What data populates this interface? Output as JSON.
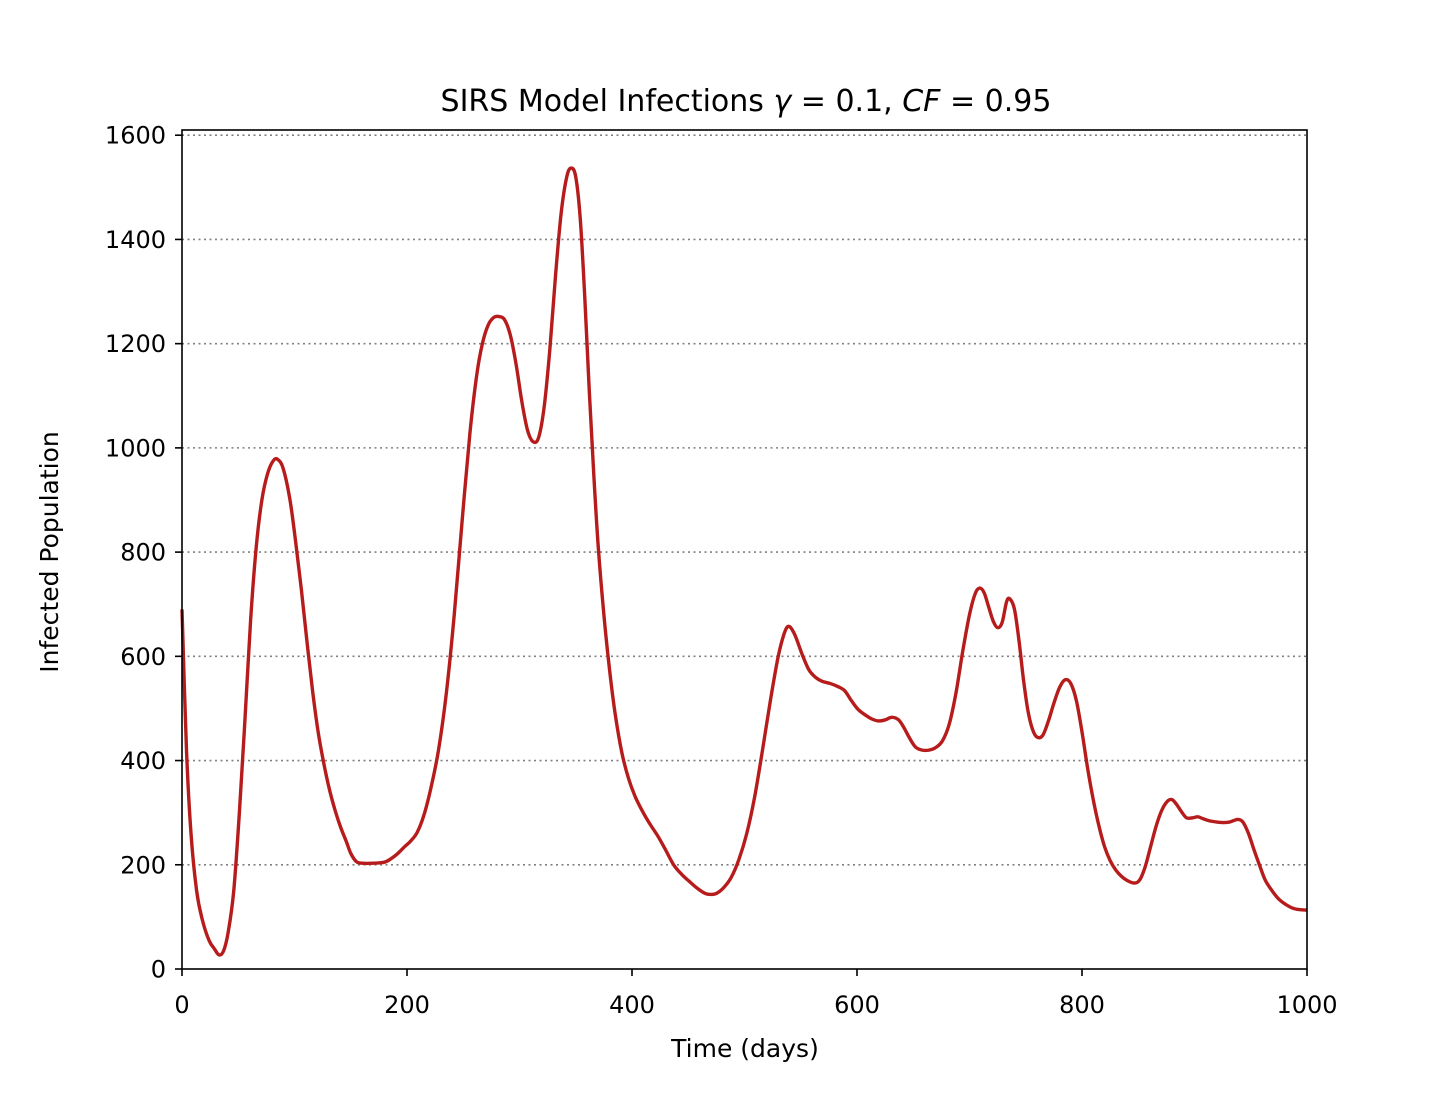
{
  "chart_data": {
    "type": "line",
    "title": {
      "prefix": "SIRS Model Infections ",
      "gamma_symbol": "γ",
      "gamma_rest": " = 0.1, ",
      "cf_symbol": "CF",
      "cf_rest": " = 0.95"
    },
    "xlabel": "Time (days)",
    "ylabel": "Infected Population",
    "xlim": [
      0,
      1000
    ],
    "ylim": [
      0,
      1610
    ],
    "x_ticks": [
      0,
      200,
      400,
      600,
      800,
      1000
    ],
    "y_ticks": [
      0,
      200,
      400,
      600,
      800,
      1000,
      1200,
      1400,
      1600
    ],
    "grid": "horizontal dotted",
    "series": [
      {
        "color": "#b71c1c",
        "points": [
          [
            0,
            690
          ],
          [
            4,
            420
          ],
          [
            8,
            260
          ],
          [
            13,
            150
          ],
          [
            18,
            95
          ],
          [
            24,
            55
          ],
          [
            29,
            38
          ],
          [
            33,
            27
          ],
          [
            37,
            35
          ],
          [
            41,
            70
          ],
          [
            46,
            150
          ],
          [
            51,
            300
          ],
          [
            56,
            480
          ],
          [
            61,
            670
          ],
          [
            66,
            810
          ],
          [
            71,
            900
          ],
          [
            76,
            950
          ],
          [
            81,
            975
          ],
          [
            85,
            978
          ],
          [
            90,
            960
          ],
          [
            96,
            900
          ],
          [
            101,
            820
          ],
          [
            106,
            730
          ],
          [
            111,
            630
          ],
          [
            116,
            535
          ],
          [
            121,
            455
          ],
          [
            126,
            395
          ],
          [
            131,
            345
          ],
          [
            136,
            305
          ],
          [
            141,
            272
          ],
          [
            146,
            245
          ],
          [
            150,
            222
          ],
          [
            155,
            206
          ],
          [
            160,
            203
          ],
          [
            170,
            203
          ],
          [
            180,
            205
          ],
          [
            186,
            212
          ],
          [
            192,
            222
          ],
          [
            198,
            235
          ],
          [
            203,
            245
          ],
          [
            209,
            262
          ],
          [
            215,
            295
          ],
          [
            221,
            345
          ],
          [
            228,
            420
          ],
          [
            235,
            530
          ],
          [
            242,
            680
          ],
          [
            249,
            860
          ],
          [
            256,
            1030
          ],
          [
            262,
            1140
          ],
          [
            267,
            1200
          ],
          [
            272,
            1235
          ],
          [
            277,
            1250
          ],
          [
            282,
            1252
          ],
          [
            287,
            1245
          ],
          [
            292,
            1215
          ],
          [
            297,
            1160
          ],
          [
            302,
            1090
          ],
          [
            307,
            1035
          ],
          [
            312,
            1012
          ],
          [
            317,
            1020
          ],
          [
            322,
            1080
          ],
          [
            327,
            1190
          ],
          [
            332,
            1330
          ],
          [
            337,
            1450
          ],
          [
            342,
            1520
          ],
          [
            346,
            1537
          ],
          [
            350,
            1520
          ],
          [
            354,
            1440
          ],
          [
            358,
            1290
          ],
          [
            362,
            1110
          ],
          [
            366,
            950
          ],
          [
            370,
            810
          ],
          [
            375,
            680
          ],
          [
            380,
            575
          ],
          [
            385,
            490
          ],
          [
            391,
            415
          ],
          [
            397,
            365
          ],
          [
            403,
            330
          ],
          [
            410,
            300
          ],
          [
            416,
            278
          ],
          [
            423,
            255
          ],
          [
            430,
            228
          ],
          [
            437,
            200
          ],
          [
            444,
            182
          ],
          [
            451,
            168
          ],
          [
            458,
            155
          ],
          [
            465,
            145
          ],
          [
            470,
            143
          ],
          [
            475,
            145
          ],
          [
            481,
            155
          ],
          [
            488,
            175
          ],
          [
            495,
            210
          ],
          [
            502,
            260
          ],
          [
            509,
            330
          ],
          [
            516,
            420
          ],
          [
            523,
            515
          ],
          [
            530,
            600
          ],
          [
            536,
            648
          ],
          [
            540,
            657
          ],
          [
            545,
            640
          ],
          [
            551,
            605
          ],
          [
            557,
            575
          ],
          [
            563,
            560
          ],
          [
            569,
            552
          ],
          [
            576,
            548
          ],
          [
            583,
            542
          ],
          [
            589,
            534
          ],
          [
            595,
            515
          ],
          [
            601,
            498
          ],
          [
            607,
            488
          ],
          [
            613,
            480
          ],
          [
            619,
            476
          ],
          [
            625,
            478
          ],
          [
            631,
            483
          ],
          [
            637,
            478
          ],
          [
            642,
            462
          ],
          [
            647,
            442
          ],
          [
            652,
            426
          ],
          [
            658,
            420
          ],
          [
            664,
            420
          ],
          [
            670,
            425
          ],
          [
            676,
            438
          ],
          [
            682,
            470
          ],
          [
            688,
            530
          ],
          [
            694,
            610
          ],
          [
            700,
            680
          ],
          [
            705,
            720
          ],
          [
            709,
            731
          ],
          [
            713,
            722
          ],
          [
            717,
            695
          ],
          [
            721,
            668
          ],
          [
            725,
            655
          ],
          [
            729,
            665
          ],
          [
            733,
            705
          ],
          [
            736,
            710
          ],
          [
            740,
            690
          ],
          [
            744,
            630
          ],
          [
            748,
            555
          ],
          [
            752,
            495
          ],
          [
            756,
            460
          ],
          [
            760,
            445
          ],
          [
            765,
            448
          ],
          [
            770,
            475
          ],
          [
            775,
            510
          ],
          [
            780,
            540
          ],
          [
            785,
            555
          ],
          [
            790,
            548
          ],
          [
            795,
            515
          ],
          [
            800,
            455
          ],
          [
            805,
            385
          ],
          [
            810,
            325
          ],
          [
            815,
            275
          ],
          [
            820,
            235
          ],
          [
            825,
            208
          ],
          [
            830,
            190
          ],
          [
            835,
            178
          ],
          [
            840,
            170
          ],
          [
            846,
            165
          ],
          [
            851,
            170
          ],
          [
            856,
            195
          ],
          [
            861,
            235
          ],
          [
            866,
            275
          ],
          [
            871,
            305
          ],
          [
            876,
            322
          ],
          [
            880,
            325
          ],
          [
            884,
            316
          ],
          [
            889,
            300
          ],
          [
            893,
            290
          ],
          [
            898,
            290
          ],
          [
            903,
            292
          ],
          [
            908,
            288
          ],
          [
            914,
            284
          ],
          [
            920,
            282
          ],
          [
            926,
            281
          ],
          [
            931,
            282
          ],
          [
            935,
            285
          ],
          [
            939,
            287
          ],
          [
            943,
            282
          ],
          [
            948,
            260
          ],
          [
            953,
            228
          ],
          [
            958,
            198
          ],
          [
            963,
            170
          ],
          [
            969,
            150
          ],
          [
            975,
            134
          ],
          [
            981,
            124
          ],
          [
            987,
            117
          ],
          [
            993,
            114
          ],
          [
            1000,
            113
          ]
        ]
      }
    ]
  }
}
